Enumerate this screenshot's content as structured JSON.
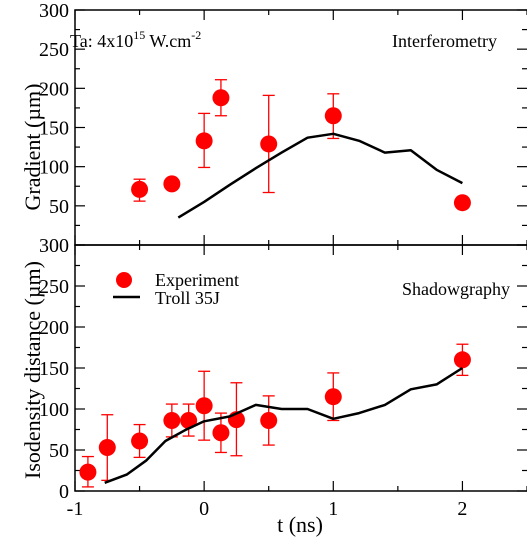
{
  "chart_data": [
    {
      "type": "scatter",
      "panel": "top",
      "annotations": [
        "Ta: 4x10",
        "15",
        " W.cm",
        "-2",
        "Interferometry"
      ],
      "ylabel": "Gradient (µm)",
      "xlabel": "",
      "xlim": [
        -1,
        2.5
      ],
      "ylim": [
        0,
        300
      ],
      "x_ticks": [
        -1,
        0,
        1,
        2
      ],
      "y_ticks": [
        0,
        50,
        100,
        150,
        200,
        250,
        300
      ],
      "y_tick_labels": [
        "50",
        "100",
        "150",
        "200",
        "250",
        "300"
      ],
      "series": [
        {
          "kind": "points_with_errorbars",
          "color": "#ff0000",
          "points": [
            {
              "x": -0.5,
              "y": 71,
              "lo": 56,
              "hi": 84
            },
            {
              "x": -0.25,
              "y": 78,
              "lo": 78,
              "hi": 78
            },
            {
              "x": 0.0,
              "y": 133,
              "lo": 99,
              "hi": 168
            },
            {
              "x": 0.13,
              "y": 188,
              "lo": 165,
              "hi": 211
            },
            {
              "x": 0.5,
              "y": 129,
              "lo": 67,
              "hi": 191
            },
            {
              "x": 1.0,
              "y": 165,
              "lo": 136,
              "hi": 193
            },
            {
              "x": 2.0,
              "y": 54,
              "lo": 48,
              "hi": 60
            }
          ]
        },
        {
          "kind": "line",
          "color": "#000000",
          "x": [
            -0.2,
            0,
            0.2,
            0.4,
            0.6,
            0.8,
            1.0,
            1.2,
            1.4,
            1.6,
            1.8,
            2.0
          ],
          "y": [
            35,
            55,
            77,
            98,
            118,
            137,
            142,
            133,
            118,
            121,
            96,
            79
          ]
        }
      ]
    },
    {
      "type": "scatter",
      "panel": "bottom",
      "annotations": [
        "Shadowgraphy"
      ],
      "ylabel": "Isodensity distance (µm)",
      "xlabel": "t  (ns)",
      "xlim": [
        -1,
        2.5
      ],
      "ylim": [
        0,
        300
      ],
      "x_ticks": [
        -1,
        0,
        1,
        2
      ],
      "x_tick_labels": [
        "-1",
        "0",
        "1",
        "2"
      ],
      "y_ticks": [
        0,
        50,
        100,
        150,
        200,
        250,
        300
      ],
      "y_tick_labels": [
        "0",
        "50",
        "100",
        "150",
        "200",
        "250",
        "300"
      ],
      "legend_position": "top-left",
      "series": [
        {
          "name": "Experiment",
          "kind": "points_with_errorbars",
          "color": "#ff0000",
          "points": [
            {
              "x": -0.9,
              "y": 23,
              "lo": 5,
              "hi": 42
            },
            {
              "x": -0.75,
              "y": 53,
              "lo": 13,
              "hi": 93
            },
            {
              "x": -0.5,
              "y": 61,
              "lo": 41,
              "hi": 81
            },
            {
              "x": -0.25,
              "y": 86,
              "lo": 66,
              "hi": 106
            },
            {
              "x": -0.12,
              "y": 86,
              "lo": 67,
              "hi": 106
            },
            {
              "x": 0.0,
              "y": 104,
              "lo": 62,
              "hi": 146
            },
            {
              "x": 0.13,
              "y": 71,
              "lo": 47,
              "hi": 95
            },
            {
              "x": 0.25,
              "y": 87,
              "lo": 43,
              "hi": 132
            },
            {
              "x": 0.5,
              "y": 86,
              "lo": 56,
              "hi": 116
            },
            {
              "x": 1.0,
              "y": 115,
              "lo": 86,
              "hi": 144
            },
            {
              "x": 2.0,
              "y": 160,
              "lo": 141,
              "hi": 179
            }
          ]
        },
        {
          "name": "Troll 35J",
          "kind": "line",
          "color": "#000000",
          "x": [
            -0.77,
            -0.6,
            -0.45,
            -0.3,
            -0.15,
            0,
            0.2,
            0.4,
            0.6,
            0.8,
            1.0,
            1.2,
            1.4,
            1.6,
            1.8,
            2.0
          ],
          "y": [
            10,
            20,
            37,
            61,
            74,
            85,
            91,
            105,
            100,
            100,
            88,
            95,
            105,
            124,
            130,
            150
          ]
        }
      ]
    }
  ]
}
